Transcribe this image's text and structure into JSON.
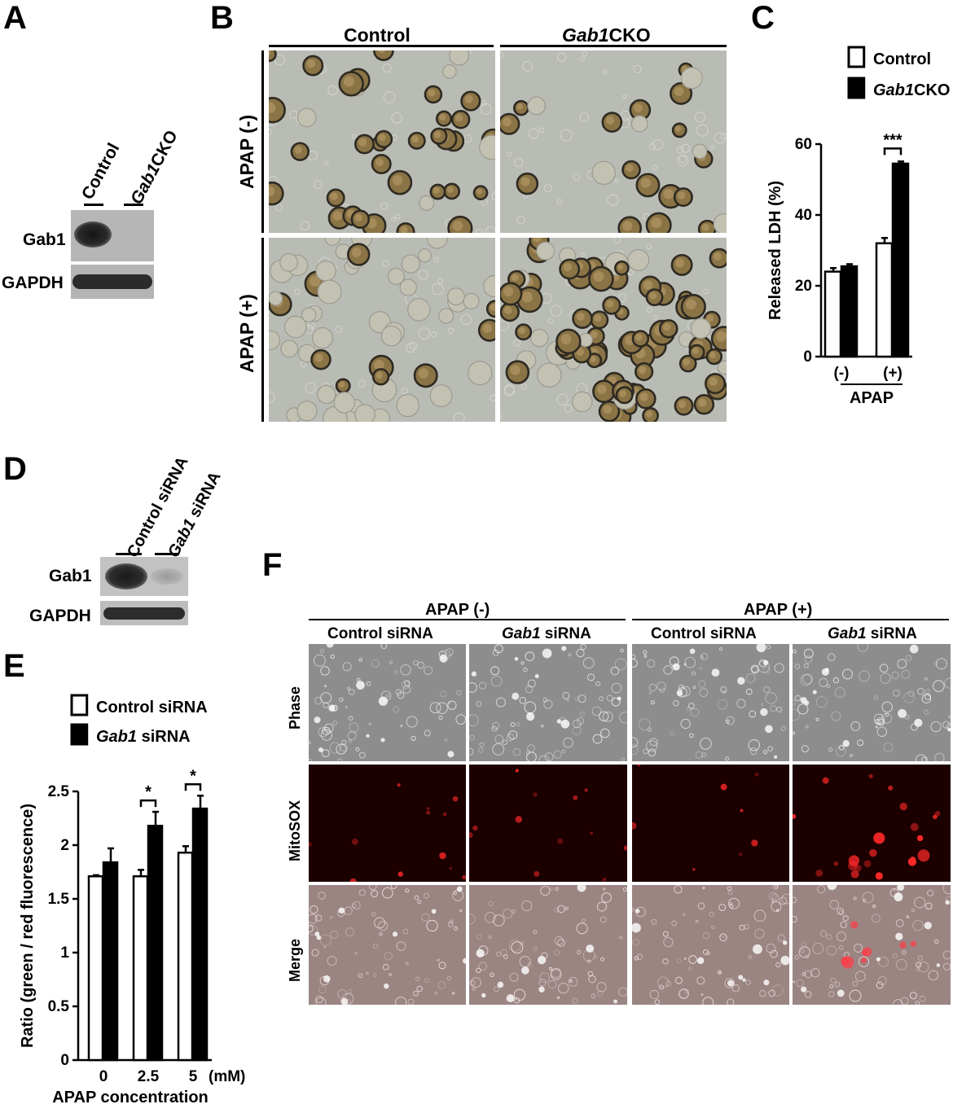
{
  "panels": {
    "a": "A",
    "b": "B",
    "c": "C",
    "d": "D",
    "e": "E",
    "f": "F"
  },
  "panel_a": {
    "lane_labels": {
      "control": "Control",
      "cko_italic": "Gab1",
      "cko_rest": "CKO"
    },
    "rows": [
      "Gab1",
      "GAPDH"
    ]
  },
  "panel_b": {
    "col_control": "Control",
    "col_cko_italic": "Gab1",
    "col_cko_rest": "CKO",
    "row_minus": "APAP (-)",
    "row_plus": "APAP (+)"
  },
  "panel_d": {
    "lane_control": "Control siRNA",
    "lane_gab1_italic": "Gab1",
    "lane_gab1_rest": " siRNA",
    "rows": [
      "Gab1",
      "GAPDH"
    ]
  },
  "panel_f": {
    "group_minus": "APAP (-)",
    "group_plus": "APAP (+)",
    "cols": [
      {
        "italic": "",
        "rest": "Control siRNA"
      },
      {
        "italic": "Gab1",
        "rest": " siRNA"
      },
      {
        "italic": "",
        "rest": "Control siRNA"
      },
      {
        "italic": "Gab1",
        "rest": " siRNA"
      }
    ],
    "rows": [
      "Phase",
      "MitoSOX",
      "Merge"
    ]
  },
  "chart_data": [
    {
      "panel": "C",
      "type": "bar",
      "categories": [
        "(-)",
        "(+)"
      ],
      "series": [
        {
          "name_italic": "",
          "name": "Control",
          "values": [
            24,
            32
          ],
          "errors": [
            1.0,
            1.5
          ],
          "color": "#ffffff"
        },
        {
          "name_italic": "Gab1",
          "name": "CKO",
          "values": [
            25.5,
            54.5
          ],
          "errors": [
            0.6,
            0.6
          ],
          "color": "#000000"
        }
      ],
      "ylabel": "Released LDH (%)",
      "xlabel": "APAP",
      "ylim": [
        0,
        60
      ],
      "yticks": [
        "0",
        "20",
        "40",
        "60"
      ],
      "significance": [
        {
          "category": "(+)",
          "label": "***"
        }
      ],
      "legend": "top"
    },
    {
      "panel": "E",
      "type": "bar",
      "categories": [
        "0",
        "2.5",
        "5"
      ],
      "unit": "(mM)",
      "series": [
        {
          "name_italic": "",
          "name": "Control siRNA",
          "values": [
            1.71,
            1.71,
            1.93
          ],
          "errors": [
            0.01,
            0.06,
            0.06
          ],
          "color": "#ffffff"
        },
        {
          "name_italic": "Gab1",
          "name": " siRNA",
          "values": [
            1.84,
            2.18,
            2.34
          ],
          "errors": [
            0.13,
            0.13,
            0.12
          ],
          "color": "#000000"
        }
      ],
      "ylabel": "Ratio (green / red fluorescence)",
      "xlabel": "APAP concentration",
      "ylim": [
        0,
        2.5
      ],
      "yticks": [
        "0",
        "0.5",
        "1",
        "1.5",
        "2",
        "2.5"
      ],
      "significance": [
        {
          "category": "2.5",
          "label": "*"
        },
        {
          "category": "5",
          "label": "*"
        }
      ],
      "legend": "top"
    }
  ]
}
